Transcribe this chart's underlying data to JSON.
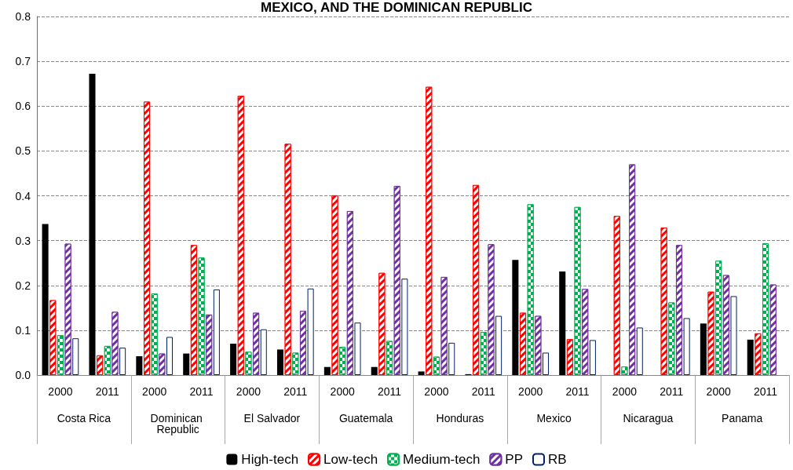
{
  "chart_data": {
    "type": "bar",
    "title": "MEXICO, AND THE DOMINICAN REPUBLIC",
    "categories": [
      "2000",
      "2011",
      "2000",
      "2011",
      "2000",
      "2011",
      "2000",
      "2011",
      "2000",
      "2011",
      "2000",
      "2011",
      "2000",
      "2011",
      "2000",
      "2011"
    ],
    "annotations": [
      "Costa Rica",
      "Dominican Republic",
      "El Salvador",
      "Guatemala",
      "Honduras",
      "Mexico",
      "Nicaragua",
      "Panama"
    ],
    "series": [
      {
        "name": "High-tech",
        "color": "#000000",
        "values": [
          0.337,
          0.672,
          0.042,
          0.048,
          0.07,
          0.057,
          0.018,
          0.018,
          0.008,
          0.002,
          0.257,
          0.231,
          0,
          0,
          0.115,
          0.079
        ]
      },
      {
        "name": "Low-tech",
        "color": "#ff0000",
        "values": [
          0.167,
          0.044,
          0.61,
          0.29,
          0.623,
          0.516,
          0.401,
          0.228,
          0.643,
          0.424,
          0.139,
          0.08,
          0.355,
          0.329,
          0.186,
          0.093
        ]
      },
      {
        "name": "Medium-tech",
        "color": "#00b050",
        "values": [
          0.089,
          0.065,
          0.182,
          0.262,
          0.052,
          0.05,
          0.063,
          0.076,
          0.041,
          0.096,
          0.381,
          0.375,
          0.019,
          0.162,
          0.255,
          0.294
        ]
      },
      {
        "name": "PP",
        "color": "#7030a0",
        "values": [
          0.293,
          0.141,
          0.048,
          0.135,
          0.139,
          0.143,
          0.366,
          0.422,
          0.219,
          0.292,
          0.132,
          0.192,
          0.47,
          0.29,
          0.223,
          0.202
        ]
      },
      {
        "name": "RB",
        "color": "#002060",
        "values": [
          0.082,
          0.061,
          0.085,
          0.191,
          0.102,
          0.193,
          0.117,
          0.215,
          0.072,
          0.132,
          0.05,
          0.078,
          0.106,
          0.127,
          0.176,
          null
        ]
      }
    ],
    "ylim": [
      0,
      0.8
    ],
    "yticks": [
      {
        "value": 0,
        "label": "0.0"
      },
      0.1,
      0.2,
      0.3,
      0.4,
      0.5,
      0.6,
      0.7,
      0.8
    ],
    "grid": "y",
    "legend": "bottom"
  }
}
